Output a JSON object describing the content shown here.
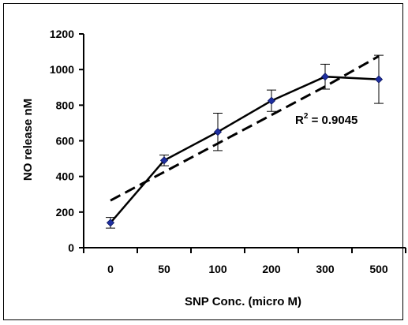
{
  "chart_data": {
    "type": "line",
    "categories": [
      "0",
      "50",
      "100",
      "200",
      "300",
      "500"
    ],
    "series": [
      {
        "values": [
          140,
          490,
          650,
          825,
          960,
          945
        ],
        "error": [
          30,
          30,
          105,
          60,
          70,
          135
        ],
        "color": "#1f2fa0",
        "style": "solid",
        "marker": "diamond"
      }
    ],
    "trendline": {
      "type": "polynomial",
      "values": [
        265,
        425,
        585,
        745,
        905,
        1075
      ],
      "style": "dashed",
      "r2_label": "R",
      "r2_sup": "2",
      "r2_value": " = 0.9045"
    },
    "xlabel": "SNP Conc. (micro M)",
    "ylabel": "NO release nM",
    "ylim": [
      0,
      1200
    ],
    "yticks": [
      "0",
      "200",
      "400",
      "600",
      "800",
      "1000",
      "1200"
    ],
    "grid": false,
    "legend": "none"
  }
}
